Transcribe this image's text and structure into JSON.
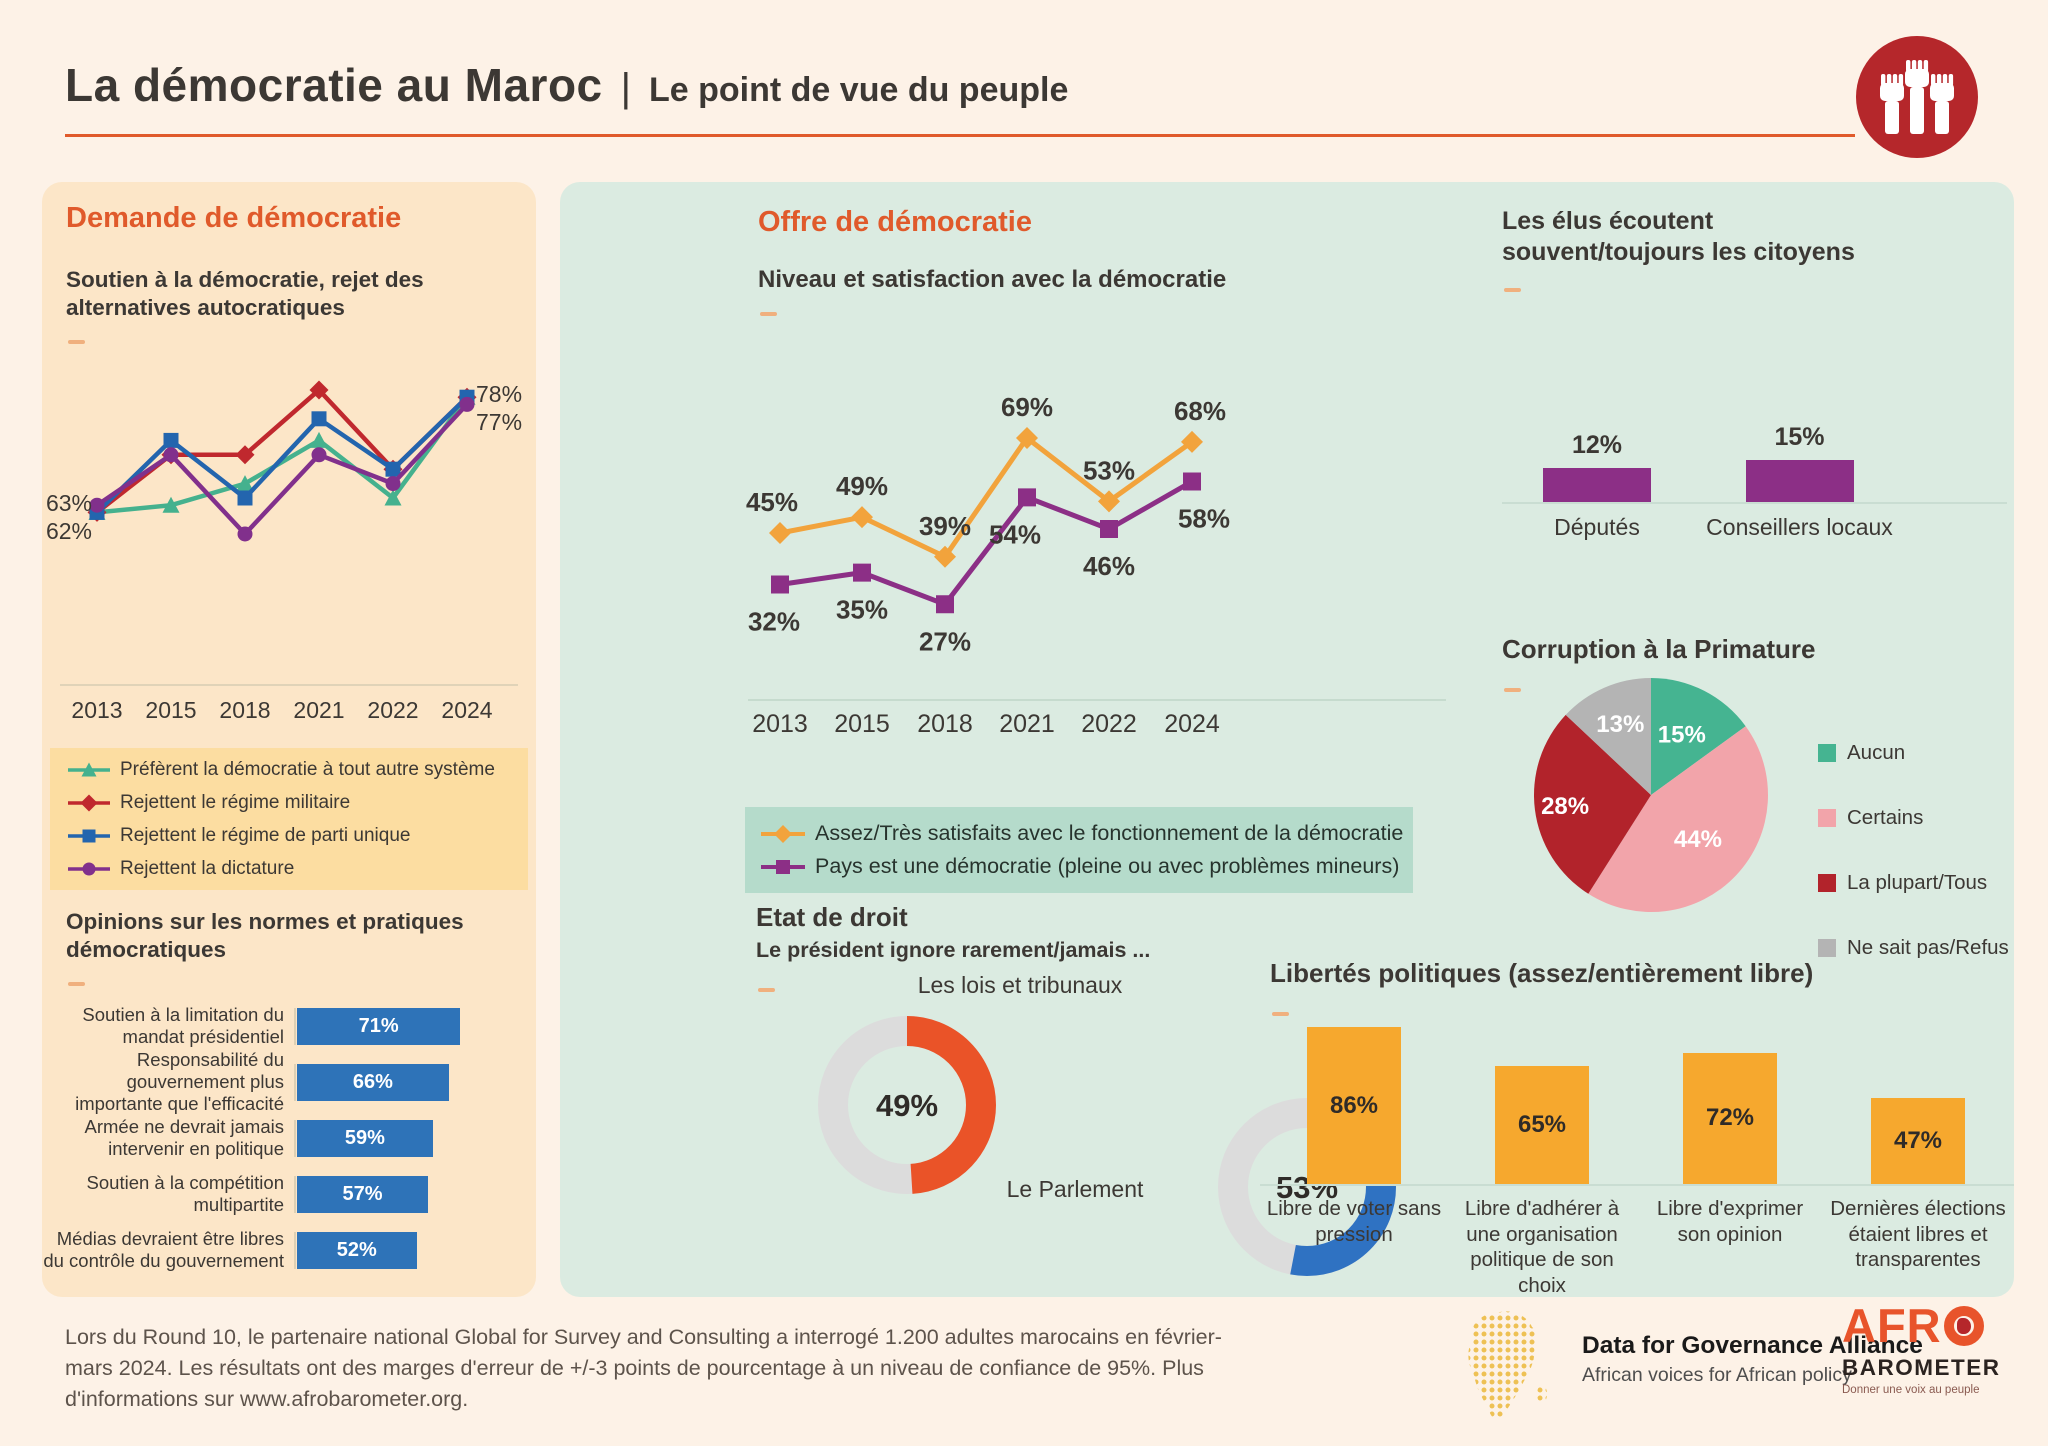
{
  "header": {
    "title_main": "La démocratie au Maroc",
    "separator": "|",
    "title_sub": "Le point de vue du peuple"
  },
  "sections": {
    "demande": {
      "title": "Demande de démocratie"
    },
    "offre": {
      "title": "Offre de démocratie"
    }
  },
  "chart_data": [
    {
      "id": "demand",
      "type": "line",
      "title": "Soutien à la démocratie, rejet des alternatives autocratiques",
      "categories": [
        "2013",
        "2015",
        "2018",
        "2021",
        "2022",
        "2024"
      ],
      "series": [
        {
          "name": "Préfèrent la démocratie à tout autre système",
          "color": "#45b18e",
          "marker": "triangle",
          "values": [
            62,
            63,
            66,
            72,
            64,
            78
          ]
        },
        {
          "name": "Rejettent le régime militaire",
          "color": "#c0282e",
          "marker": "diamond",
          "values": [
            62,
            70,
            70,
            79,
            68,
            78
          ]
        },
        {
          "name": "Rejettent le régime de parti unique",
          "color": "#2365ae",
          "marker": "square",
          "values": [
            62,
            72,
            64,
            75,
            68,
            78
          ]
        },
        {
          "name": "Rejettent la dictature",
          "color": "#81308c",
          "marker": "circle",
          "values": [
            63,
            70,
            59,
            70,
            66,
            77
          ]
        }
      ],
      "edge_labels": {
        "left": [
          "63%",
          "62%"
        ],
        "right": [
          "78%",
          "77%"
        ]
      },
      "ylim": [
        40,
        85
      ],
      "grid": false,
      "legend_position": "below"
    },
    {
      "id": "satisfaction",
      "type": "line",
      "title": "Niveau et satisfaction avec la démocratie",
      "categories": [
        "2013",
        "2015",
        "2018",
        "2021",
        "2022",
        "2024"
      ],
      "series": [
        {
          "name": "Assez/Très satisfaits avec le fonctionnement de la démocratie",
          "color": "#f2a33c",
          "marker": "diamond",
          "values": [
            45,
            49,
            39,
            69,
            53,
            68
          ],
          "label_pos": "above"
        },
        {
          "name": "Pays est une démocratie (pleine ou avec problèmes mineurs)",
          "color": "#8c2f86",
          "marker": "square",
          "values": [
            32,
            35,
            27,
            54,
            46,
            58
          ],
          "label_pos": "below"
        }
      ],
      "data_labels": true,
      "ylim": [
        0,
        80
      ],
      "legend_position": "below"
    },
    {
      "id": "elected",
      "type": "bar",
      "title": "Les élus écoutent souvent/toujours les citoyens",
      "categories": [
        "Députés",
        "Conseillers locaux"
      ],
      "values": [
        12,
        15
      ],
      "color": "#8c2f86"
    },
    {
      "id": "corruption",
      "type": "pie",
      "title": "Corruption à la Primature",
      "slices": [
        {
          "label": "Aucun",
          "value": 15,
          "color": "#45b491"
        },
        {
          "label": "Certains",
          "value": 44,
          "color": "#f2a4aa"
        },
        {
          "label": "La plupart/Tous",
          "value": 28,
          "color": "#b2232b"
        },
        {
          "label": "Ne sait pas/Refus",
          "value": 13,
          "color": "#b4b4b4"
        }
      ],
      "legend_position": "right"
    },
    {
      "id": "rule_of_law",
      "type": "donut",
      "title": "Etat de droit",
      "subtitle": "Le président ignore rarement/jamais ...",
      "items": [
        {
          "label": "Les lois et tribunaux",
          "value": 49,
          "color": "#ea5328"
        },
        {
          "label": "Le Parlement",
          "value": 53,
          "color": "#2f72c2"
        }
      ],
      "track_color": "#dcdcdc"
    },
    {
      "id": "liberties",
      "type": "bar",
      "title": "Libertés politiques (assez/entièrement libre)",
      "categories": [
        "Libre de voter sans pression",
        "Libre d'adhérer à une organisation politique de son choix",
        "Libre d'exprimer son opinion",
        "Dernières élections étaient libres et transparentes"
      ],
      "values": [
        86,
        65,
        72,
        47
      ],
      "color": "#f6a82e"
    },
    {
      "id": "opinions",
      "type": "bar",
      "title": "Opinions sur les normes et pratiques démocratiques",
      "categories": [
        "Soutien à la limitation du mandat présidentiel",
        "Responsabilité du gouvernement plus importante que l'efficacité",
        "Armée ne devrait jamais intervenir en politique",
        "Soutien à la compétition multipartite",
        "Médias devraient être libres du contrôle du gouvernement"
      ],
      "values": [
        71,
        66,
        59,
        57,
        52
      ],
      "color": "#2e73b8"
    }
  ],
  "footer": {
    "text": "Lors du Round 10, le partenaire national Global for Survey and Consulting a interrogé 1.200 adultes marocains en février-\nmars 2024. Les résultats ont des marges d'erreur de +/-3 points de pourcentage à un niveau de confiance de 95%. Plus\nd'informations sur www.afrobarometer.org.",
    "dga_name": "Data for Governance Alliance",
    "dga_tagline": "African voices for African policy",
    "afro_prefix": "AFR",
    "afro_line2": "BAROMETER",
    "afro_tagline": "Donner une voix au peuple"
  },
  "colors": {
    "accent_orange": "#e05a2b",
    "page_bg": "#fdf2e7",
    "panel_left_bg": "#fce6c8",
    "panel_right_bg": "#dbebe1",
    "legend_left_bg": "#fcdda1",
    "legend_right_bg": "#b5dbcb",
    "logo_red": "#b5272b",
    "bar_blue": "#2e73b8",
    "bar_orange": "#f6a82e",
    "bar_purple": "#8c2f86"
  }
}
